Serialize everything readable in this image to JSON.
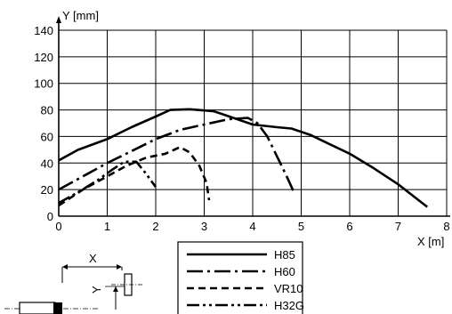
{
  "chart_data": {
    "type": "line",
    "xlabel": "X [m]",
    "ylabel": "Y [mm]",
    "xlim": [
      0,
      8
    ],
    "ylim": [
      0,
      140
    ],
    "x_ticks": [
      "0",
      "1",
      "2",
      "3",
      "4",
      "5",
      "6",
      "7",
      "8"
    ],
    "y_ticks": [
      "0",
      "20",
      "40",
      "60",
      "80",
      "100",
      "120",
      "140"
    ],
    "grid": true,
    "legend_position": "bottom-center",
    "series": [
      {
        "name": "H85",
        "style": "solid",
        "points": [
          [
            0,
            42
          ],
          [
            0.4,
            50
          ],
          [
            1,
            58
          ],
          [
            1.5,
            67
          ],
          [
            2,
            75
          ],
          [
            2.3,
            80
          ],
          [
            2.7,
            80.5
          ],
          [
            3.2,
            79
          ],
          [
            3.6,
            74
          ],
          [
            4,
            69
          ],
          [
            4.5,
            67
          ],
          [
            4.8,
            66
          ],
          [
            5.2,
            61
          ],
          [
            5.6,
            54
          ],
          [
            6,
            47
          ],
          [
            6.5,
            36
          ],
          [
            7,
            24
          ],
          [
            7.6,
            7
          ]
        ]
      },
      {
        "name": "H60",
        "style": "dashdot",
        "points": [
          [
            0,
            20
          ],
          [
            0.5,
            30
          ],
          [
            1,
            40
          ],
          [
            1.5,
            49
          ],
          [
            2,
            58
          ],
          [
            2.5,
            65
          ],
          [
            3,
            69
          ],
          [
            3.5,
            73
          ],
          [
            3.9,
            74
          ],
          [
            4.1,
            70
          ],
          [
            4.3,
            60
          ],
          [
            4.5,
            45
          ],
          [
            4.7,
            30
          ],
          [
            4.85,
            18
          ]
        ]
      },
      {
        "name": "VR10",
        "style": "dashed",
        "points": [
          [
            0,
            8
          ],
          [
            0.5,
            20
          ],
          [
            1,
            30
          ],
          [
            1.4,
            38
          ],
          [
            1.8,
            44
          ],
          [
            2.2,
            47
          ],
          [
            2.5,
            52
          ],
          [
            2.7,
            48
          ],
          [
            2.9,
            38
          ],
          [
            3.05,
            25
          ],
          [
            3.1,
            12
          ]
        ]
      },
      {
        "name": "H32G",
        "style": "dashdotdot",
        "points": [
          [
            0,
            10
          ],
          [
            0.4,
            18
          ],
          [
            0.8,
            27
          ],
          [
            1.1,
            35
          ],
          [
            1.35,
            41
          ],
          [
            1.6,
            41
          ],
          [
            1.8,
            32
          ],
          [
            2,
            22
          ]
        ]
      }
    ]
  },
  "legend": [
    "H85",
    "H60",
    "VR10",
    "H32G"
  ],
  "inset": {
    "x_label": "X",
    "y_label": "Y"
  }
}
